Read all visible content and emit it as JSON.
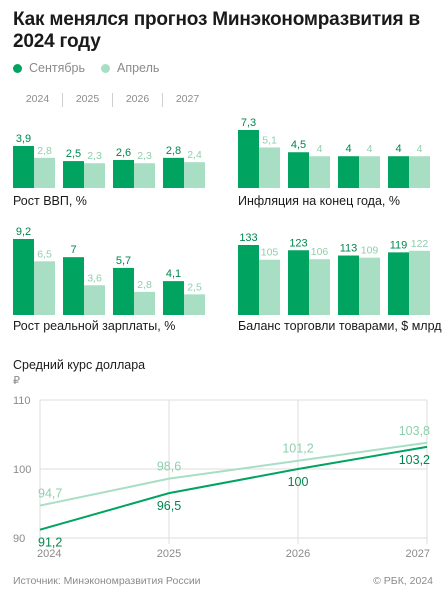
{
  "title": "Как менялся прогноз Минэкономразвития в 2024 году",
  "legend": [
    {
      "label": "Сентябрь",
      "color": "#00a35f"
    },
    {
      "label": "Апрель",
      "color": "#a8dfc4"
    }
  ],
  "years": [
    "2024",
    "2025",
    "2026",
    "2027"
  ],
  "chart_data": [
    {
      "type": "bar",
      "title": "Рост ВВП, %",
      "categories": [
        "2024",
        "2025",
        "2026",
        "2027"
      ],
      "series": [
        {
          "name": "Сентябрь",
          "values": [
            3.9,
            2.5,
            2.6,
            2.8
          ],
          "labels": [
            "3,9",
            "2,5",
            "2,6",
            "2,8"
          ]
        },
        {
          "name": "Апрель",
          "values": [
            2.8,
            2.3,
            2.3,
            2.4
          ],
          "labels": [
            "2,8",
            "2,3",
            "2,3",
            "2,4"
          ]
        }
      ]
    },
    {
      "type": "bar",
      "title": "Инфляция на конец года, %",
      "categories": [
        "2024",
        "2025",
        "2026",
        "2027"
      ],
      "series": [
        {
          "name": "Сентябрь",
          "values": [
            7.3,
            4.5,
            4,
            4
          ],
          "labels": [
            "7,3",
            "4,5",
            "4",
            "4"
          ]
        },
        {
          "name": "Апрель",
          "values": [
            5.1,
            4,
            4,
            4
          ],
          "labels": [
            "5,1",
            "4",
            "4",
            "4"
          ]
        }
      ]
    },
    {
      "type": "bar",
      "title": "Рост реальной зарплаты, %",
      "categories": [
        "2024",
        "2025",
        "2026",
        "2027"
      ],
      "series": [
        {
          "name": "Сентябрь",
          "values": [
            9.2,
            7,
            5.7,
            4.1
          ],
          "labels": [
            "9,2",
            "7",
            "5,7",
            "4,1"
          ]
        },
        {
          "name": "Апрель",
          "values": [
            6.5,
            3.6,
            2.8,
            2.5
          ],
          "labels": [
            "6,5",
            "3,6",
            "2,8",
            "2,5"
          ]
        }
      ]
    },
    {
      "type": "bar",
      "title": "Баланс торговли товарами, $ млрд",
      "categories": [
        "2024",
        "2025",
        "2026",
        "2027"
      ],
      "series": [
        {
          "name": "Сентябрь",
          "values": [
            133,
            123,
            113,
            119
          ],
          "labels": [
            "133",
            "123",
            "113",
            "119"
          ]
        },
        {
          "name": "Апрель",
          "values": [
            105,
            106,
            109,
            122
          ],
          "labels": [
            "105",
            "106",
            "109",
            "122"
          ]
        }
      ]
    },
    {
      "type": "line",
      "title": "Средний курс доллара",
      "ylabel": "₽",
      "x": [
        "2024",
        "2025",
        "2026",
        "2027"
      ],
      "ylim": [
        90,
        110
      ],
      "yticks": [
        "110",
        "100",
        "90"
      ],
      "series": [
        {
          "name": "Сентябрь",
          "values": [
            91.2,
            96.5,
            100,
            103.2
          ],
          "labels": [
            "91,2",
            "96,5",
            "100",
            "103,2"
          ]
        },
        {
          "name": "Апрель",
          "values": [
            94.7,
            98.6,
            101.2,
            103.8
          ],
          "labels": [
            "94,7",
            "98,6",
            "101,2",
            "103,8"
          ]
        }
      ]
    }
  ],
  "footer": {
    "source": "Источник: Минэкономразвития России",
    "copyright": "© РБК, 2024"
  }
}
